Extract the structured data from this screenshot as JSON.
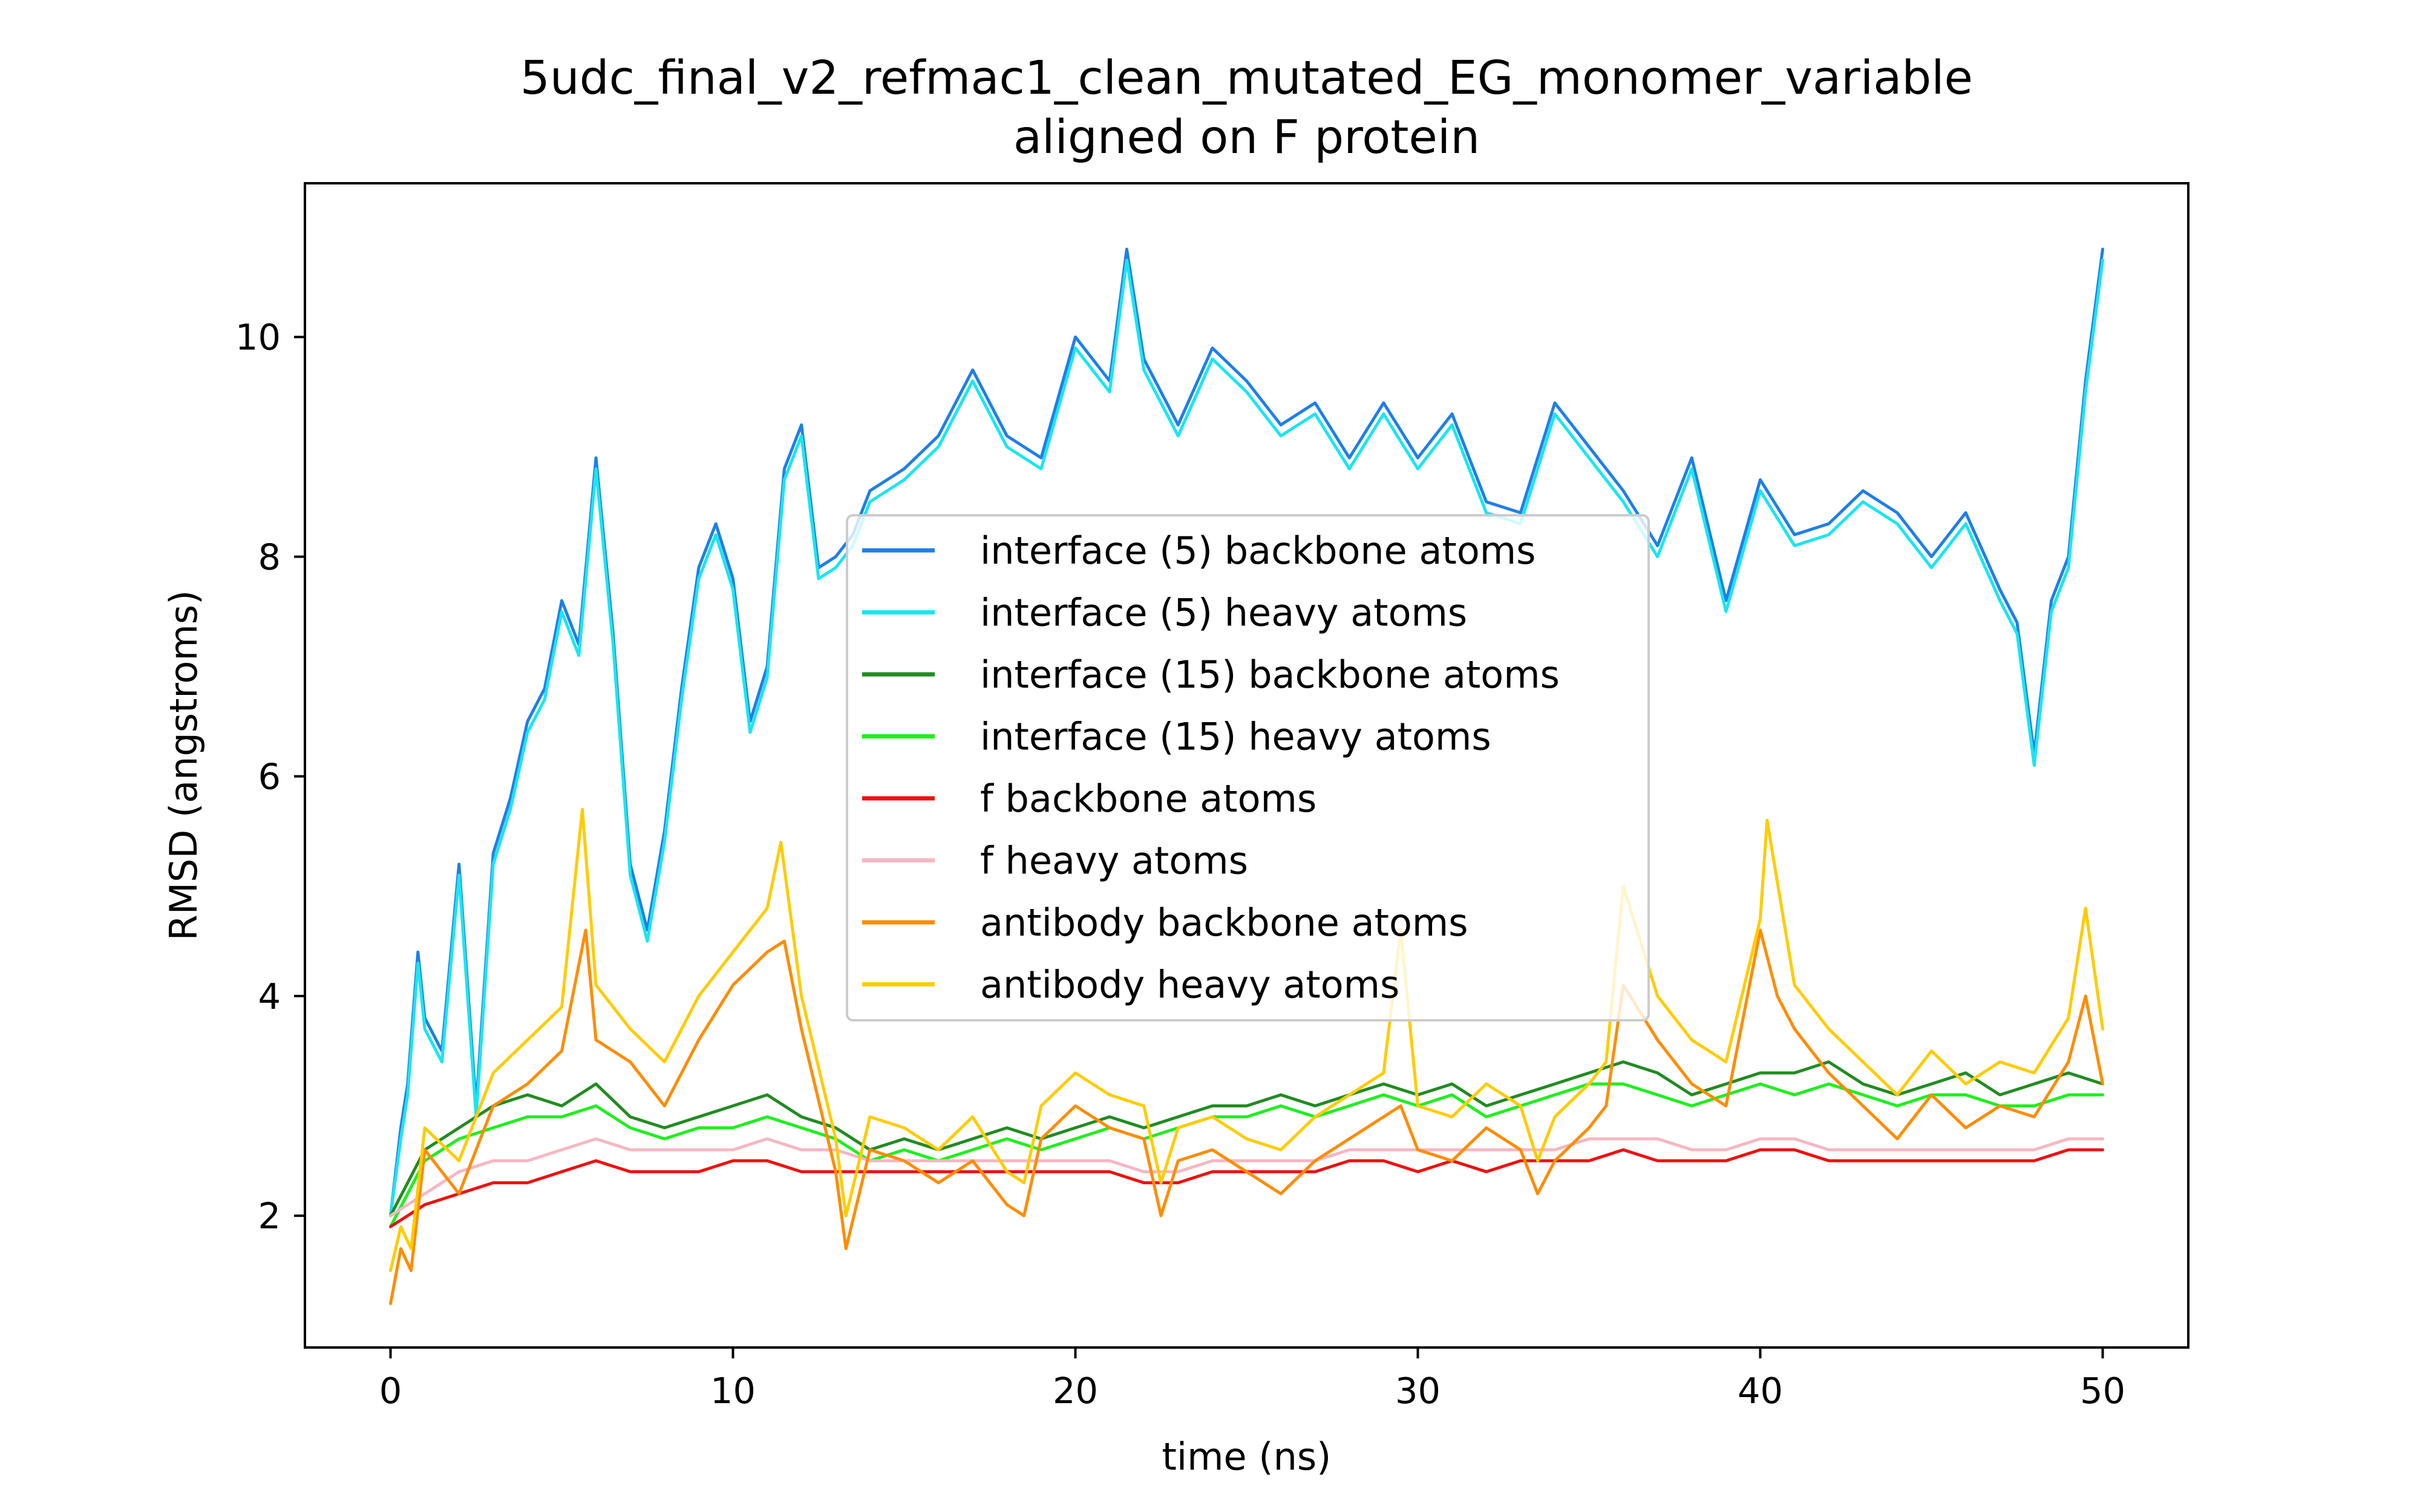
{
  "chart_data": {
    "type": "line",
    "title": "5udc_final_v2_refmac1_clean_mutated_EG_monomer_variable\naligned on F protein",
    "xlabel": "time (ns)",
    "ylabel": "RMSD (angstroms)",
    "xlim": [
      -2.5,
      52.5
    ],
    "ylim": [
      0.8,
      11.4
    ],
    "xticks": [
      0,
      10,
      20,
      30,
      40,
      50
    ],
    "xtick_labels": [
      "0",
      "10",
      "20",
      "30",
      "40",
      "50"
    ],
    "yticks": [
      2,
      4,
      6,
      8,
      10
    ],
    "ytick_labels": [
      "2",
      "4",
      "6",
      "8",
      "10"
    ],
    "grid": false,
    "legend_position": "center",
    "series": [
      {
        "name": "interface (5) backbone atoms",
        "color": "#1e7fe8",
        "x": [
          0,
          0.3,
          0.5,
          0.8,
          1,
          1.5,
          2,
          2.5,
          3,
          3.5,
          4,
          4.5,
          5,
          5.5,
          6,
          6.5,
          7,
          7.5,
          8,
          8.5,
          9,
          9.5,
          10,
          10.5,
          11,
          11.5,
          12,
          12.5,
          13,
          13.5,
          14,
          15,
          16,
          17,
          18,
          19,
          20,
          21,
          21.5,
          22,
          23,
          24,
          25,
          26,
          27,
          28,
          29,
          30,
          31,
          32,
          33,
          34,
          35,
          36,
          37,
          38,
          39,
          40,
          41,
          42,
          43,
          44,
          45,
          46,
          47,
          47.5,
          48,
          48.5,
          49,
          49.5,
          50
        ],
        "y": [
          2.0,
          2.8,
          3.2,
          4.4,
          3.8,
          3.5,
          5.2,
          3.0,
          5.3,
          5.8,
          6.5,
          6.8,
          7.6,
          7.2,
          8.9,
          7.3,
          5.2,
          4.6,
          5.5,
          6.8,
          7.9,
          8.3,
          7.8,
          6.5,
          7.0,
          8.8,
          9.2,
          7.9,
          8.0,
          8.2,
          8.6,
          8.8,
          9.1,
          9.7,
          9.1,
          8.9,
          10.0,
          9.6,
          10.8,
          9.8,
          9.2,
          9.9,
          9.6,
          9.2,
          9.4,
          8.9,
          9.4,
          8.9,
          9.3,
          8.5,
          8.4,
          9.4,
          9.0,
          8.6,
          8.1,
          8.9,
          7.6,
          8.7,
          8.2,
          8.3,
          8.6,
          8.4,
          8.0,
          8.4,
          7.7,
          7.4,
          6.2,
          7.6,
          8.0,
          9.6,
          10.8
        ]
      },
      {
        "name": "interface (5) heavy atoms",
        "color": "#19e6f0",
        "x": [
          0,
          0.3,
          0.5,
          0.8,
          1,
          1.5,
          2,
          2.5,
          3,
          3.5,
          4,
          4.5,
          5,
          5.5,
          6,
          6.5,
          7,
          7.5,
          8,
          8.5,
          9,
          9.5,
          10,
          10.5,
          11,
          11.5,
          12,
          12.5,
          13,
          13.5,
          14,
          15,
          16,
          17,
          18,
          19,
          20,
          21,
          21.5,
          22,
          23,
          24,
          25,
          26,
          27,
          28,
          29,
          30,
          31,
          32,
          33,
          34,
          35,
          36,
          37,
          38,
          39,
          40,
          41,
          42,
          43,
          44,
          45,
          46,
          47,
          47.5,
          48,
          48.5,
          49,
          49.5,
          50
        ],
        "y": [
          2.0,
          2.7,
          3.1,
          4.3,
          3.7,
          3.4,
          5.1,
          2.9,
          5.2,
          5.7,
          6.4,
          6.7,
          7.5,
          7.1,
          8.8,
          7.2,
          5.1,
          4.5,
          5.4,
          6.7,
          7.8,
          8.2,
          7.7,
          6.4,
          6.9,
          8.7,
          9.1,
          7.8,
          7.9,
          8.1,
          8.5,
          8.7,
          9.0,
          9.6,
          9.0,
          8.8,
          9.9,
          9.5,
          10.7,
          9.7,
          9.1,
          9.8,
          9.5,
          9.1,
          9.3,
          8.8,
          9.3,
          8.8,
          9.2,
          8.4,
          8.3,
          9.3,
          8.9,
          8.5,
          8.0,
          8.8,
          7.5,
          8.6,
          8.1,
          8.2,
          8.5,
          8.3,
          7.9,
          8.3,
          7.6,
          7.3,
          6.1,
          7.5,
          7.9,
          9.5,
          10.7
        ]
      },
      {
        "name": "interface (15) backbone atoms",
        "color": "#228b22",
        "x": [
          0,
          0.5,
          1,
          2,
          3,
          4,
          5,
          6,
          7,
          8,
          9,
          10,
          11,
          12,
          13,
          14,
          15,
          16,
          17,
          18,
          19,
          20,
          21,
          22,
          23,
          24,
          25,
          26,
          27,
          28,
          29,
          30,
          31,
          32,
          33,
          34,
          35,
          36,
          37,
          38,
          39,
          40,
          41,
          42,
          43,
          44,
          45,
          46,
          47,
          48,
          49,
          50
        ],
        "y": [
          2.0,
          2.3,
          2.6,
          2.8,
          3.0,
          3.1,
          3.0,
          3.2,
          2.9,
          2.8,
          2.9,
          3.0,
          3.1,
          2.9,
          2.8,
          2.6,
          2.7,
          2.6,
          2.7,
          2.8,
          2.7,
          2.8,
          2.9,
          2.8,
          2.9,
          3.0,
          3.0,
          3.1,
          3.0,
          3.1,
          3.2,
          3.1,
          3.2,
          3.0,
          3.1,
          3.2,
          3.3,
          3.4,
          3.3,
          3.1,
          3.2,
          3.3,
          3.3,
          3.4,
          3.2,
          3.1,
          3.2,
          3.3,
          3.1,
          3.2,
          3.3,
          3.2
        ]
      },
      {
        "name": "interface (15) heavy atoms",
        "color": "#1df01d",
        "x": [
          0,
          0.5,
          1,
          2,
          3,
          4,
          5,
          6,
          7,
          8,
          9,
          10,
          11,
          12,
          13,
          14,
          15,
          16,
          17,
          18,
          19,
          20,
          21,
          22,
          23,
          24,
          25,
          26,
          27,
          28,
          29,
          30,
          31,
          32,
          33,
          34,
          35,
          36,
          37,
          38,
          39,
          40,
          41,
          42,
          43,
          44,
          45,
          46,
          47,
          48,
          49,
          50
        ],
        "y": [
          1.9,
          2.2,
          2.5,
          2.7,
          2.8,
          2.9,
          2.9,
          3.0,
          2.8,
          2.7,
          2.8,
          2.8,
          2.9,
          2.8,
          2.7,
          2.5,
          2.6,
          2.5,
          2.6,
          2.7,
          2.6,
          2.7,
          2.8,
          2.7,
          2.8,
          2.9,
          2.9,
          3.0,
          2.9,
          3.0,
          3.1,
          3.0,
          3.1,
          2.9,
          3.0,
          3.1,
          3.2,
          3.2,
          3.1,
          3.0,
          3.1,
          3.2,
          3.1,
          3.2,
          3.1,
          3.0,
          3.1,
          3.1,
          3.0,
          3.0,
          3.1,
          3.1
        ]
      },
      {
        "name": "f backbone atoms",
        "color": "#ee1111",
        "x": [
          0,
          0.5,
          1,
          2,
          3,
          4,
          5,
          6,
          7,
          8,
          9,
          10,
          11,
          12,
          13,
          14,
          15,
          16,
          17,
          18,
          19,
          20,
          21,
          22,
          23,
          24,
          25,
          26,
          27,
          28,
          29,
          30,
          31,
          32,
          33,
          34,
          35,
          36,
          37,
          38,
          39,
          40,
          41,
          42,
          43,
          44,
          45,
          46,
          47,
          48,
          49,
          50
        ],
        "y": [
          1.9,
          2.0,
          2.1,
          2.2,
          2.3,
          2.3,
          2.4,
          2.5,
          2.4,
          2.4,
          2.4,
          2.5,
          2.5,
          2.4,
          2.4,
          2.4,
          2.4,
          2.4,
          2.4,
          2.4,
          2.4,
          2.4,
          2.4,
          2.3,
          2.3,
          2.4,
          2.4,
          2.4,
          2.4,
          2.5,
          2.5,
          2.4,
          2.5,
          2.4,
          2.5,
          2.5,
          2.5,
          2.6,
          2.5,
          2.5,
          2.5,
          2.6,
          2.6,
          2.5,
          2.5,
          2.5,
          2.5,
          2.5,
          2.5,
          2.5,
          2.6,
          2.6
        ]
      },
      {
        "name": "f heavy atoms",
        "color": "#f7b6c2",
        "x": [
          0,
          0.5,
          1,
          2,
          3,
          4,
          5,
          6,
          7,
          8,
          9,
          10,
          11,
          12,
          13,
          14,
          15,
          16,
          17,
          18,
          19,
          20,
          21,
          22,
          23,
          24,
          25,
          26,
          27,
          28,
          29,
          30,
          31,
          32,
          33,
          34,
          35,
          36,
          37,
          38,
          39,
          40,
          41,
          42,
          43,
          44,
          45,
          46,
          47,
          48,
          49,
          50
        ],
        "y": [
          2.0,
          2.1,
          2.2,
          2.4,
          2.5,
          2.5,
          2.6,
          2.7,
          2.6,
          2.6,
          2.6,
          2.6,
          2.7,
          2.6,
          2.6,
          2.5,
          2.5,
          2.5,
          2.5,
          2.5,
          2.5,
          2.5,
          2.5,
          2.4,
          2.4,
          2.5,
          2.5,
          2.5,
          2.5,
          2.6,
          2.6,
          2.6,
          2.6,
          2.6,
          2.6,
          2.6,
          2.7,
          2.7,
          2.7,
          2.6,
          2.6,
          2.7,
          2.7,
          2.6,
          2.6,
          2.6,
          2.6,
          2.6,
          2.6,
          2.6,
          2.7,
          2.7
        ]
      },
      {
        "name": "antibody backbone atoms",
        "color": "#ff8c00",
        "x": [
          0,
          0.3,
          0.6,
          1,
          2,
          3,
          4,
          5,
          5.7,
          6,
          7,
          8,
          9,
          10,
          11,
          11.5,
          12,
          13,
          13.3,
          14,
          15,
          16,
          17,
          18,
          18.5,
          19,
          20,
          21,
          22,
          22.5,
          23,
          24,
          25,
          26,
          27,
          28,
          29,
          29.5,
          30,
          31,
          32,
          33,
          33.5,
          34,
          35,
          35.5,
          36,
          37,
          38,
          39,
          40,
          40.5,
          41,
          42,
          43,
          44,
          45,
          46,
          47,
          48,
          49,
          49.5,
          50
        ],
        "y": [
          1.2,
          1.7,
          1.5,
          2.6,
          2.2,
          3.0,
          3.2,
          3.5,
          4.6,
          3.6,
          3.4,
          3.0,
          3.6,
          4.1,
          4.4,
          4.5,
          3.7,
          2.4,
          1.7,
          2.6,
          2.5,
          2.3,
          2.5,
          2.1,
          2.0,
          2.7,
          3.0,
          2.8,
          2.7,
          2.0,
          2.5,
          2.6,
          2.4,
          2.2,
          2.5,
          2.7,
          2.9,
          3.0,
          2.6,
          2.5,
          2.8,
          2.6,
          2.2,
          2.5,
          2.8,
          3.0,
          4.1,
          3.6,
          3.2,
          3.0,
          4.6,
          4.0,
          3.7,
          3.3,
          3.0,
          2.7,
          3.1,
          2.8,
          3.0,
          2.9,
          3.4,
          4.0,
          3.2
        ]
      },
      {
        "name": "antibody heavy atoms",
        "color": "#ffcc00",
        "x": [
          0,
          0.3,
          0.6,
          1,
          2,
          3,
          4,
          5,
          5.6,
          6,
          7,
          8,
          9,
          10,
          11,
          11.4,
          12,
          13,
          13.3,
          14,
          15,
          16,
          17,
          18,
          18.5,
          19,
          20,
          21,
          22,
          22.5,
          23,
          24,
          25,
          26,
          27,
          28,
          29,
          29.5,
          30,
          31,
          32,
          33,
          33.5,
          34,
          35,
          35.5,
          36,
          37,
          38,
          39,
          40,
          40.2,
          41,
          42,
          43,
          44,
          45,
          46,
          47,
          48,
          49,
          49.5,
          50
        ],
        "y": [
          1.5,
          1.9,
          1.7,
          2.8,
          2.5,
          3.3,
          3.6,
          3.9,
          5.7,
          4.1,
          3.7,
          3.4,
          4.0,
          4.4,
          4.8,
          5.4,
          4.0,
          2.7,
          2.0,
          2.9,
          2.8,
          2.6,
          2.9,
          2.4,
          2.3,
          3.0,
          3.3,
          3.1,
          3.0,
          2.3,
          2.8,
          2.9,
          2.7,
          2.6,
          2.9,
          3.1,
          3.3,
          4.6,
          3.0,
          2.9,
          3.2,
          3.0,
          2.5,
          2.9,
          3.2,
          3.4,
          5.0,
          4.0,
          3.6,
          3.4,
          4.7,
          5.6,
          4.1,
          3.7,
          3.4,
          3.1,
          3.5,
          3.2,
          3.4,
          3.3,
          3.8,
          4.8,
          3.7
        ]
      }
    ]
  }
}
